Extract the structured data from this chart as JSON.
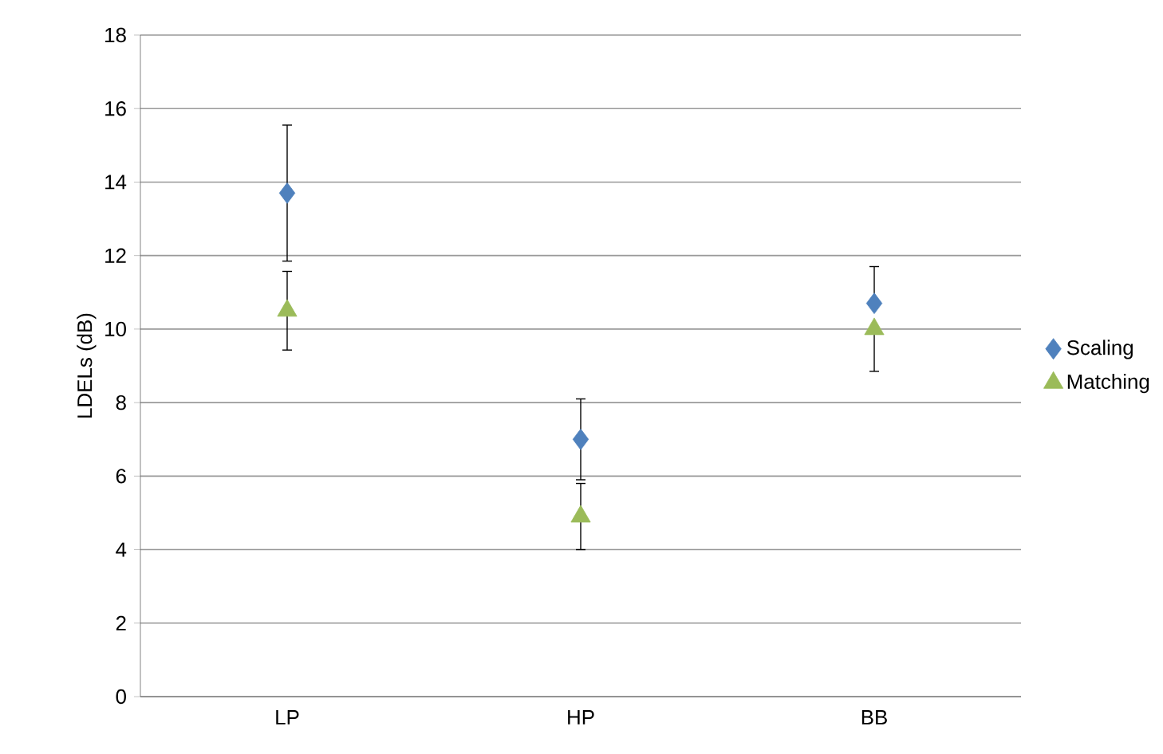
{
  "chart_data": {
    "type": "scatter",
    "ylabel": "LDELs (dB)",
    "categories": [
      "LP",
      "HP",
      "BB"
    ],
    "series": [
      {
        "name": "Scaling",
        "color": "#4f81bd",
        "marker": "diamond",
        "values": [
          13.7,
          7.0,
          10.7
        ],
        "errors": [
          1.85,
          1.1,
          [
            10.7,
            11.7
          ]
        ]
      },
      {
        "name": "Matching",
        "color": "#9bbb59",
        "marker": "triangle",
        "values": [
          10.5,
          4.9,
          10.0
        ],
        "errors": [
          1.07,
          0.9,
          [
            8.85,
            10.0
          ]
        ]
      }
    ],
    "ylim": [
      0,
      18
    ],
    "yticks": [
      0,
      2,
      4,
      6,
      8,
      10,
      12,
      14,
      16,
      18
    ],
    "grid": "y",
    "legend": "right"
  }
}
